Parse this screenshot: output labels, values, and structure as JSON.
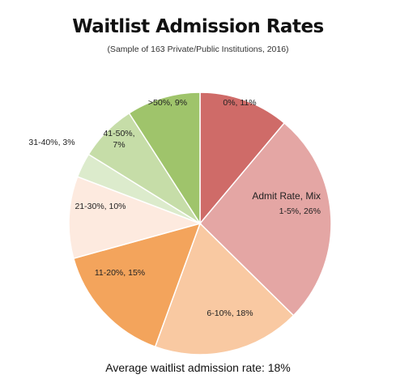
{
  "chart_data": {
    "type": "pie",
    "title": "Waitlist Admission Rates",
    "subtitle": "(Sample of 163 Private/Public Institutions, 2016)",
    "legend_title": "Admit Rate, Mix",
    "slices": [
      {
        "label": "0%, 11%",
        "category": "0%",
        "value": 11,
        "color": "#cf6b68"
      },
      {
        "label": "1-5%, 26%",
        "category": "1-5%",
        "value": 26,
        "color": "#e4a6a4"
      },
      {
        "label": "6-10%, 18%",
        "category": "6-10%",
        "value": 18,
        "color": "#f9c9a2"
      },
      {
        "label": "11-20%, 15%",
        "category": "11-20%",
        "value": 15,
        "color": "#f3a45c"
      },
      {
        "label": "21-30%, 10%",
        "category": "21-30%",
        "value": 10,
        "color": "#fdeadf"
      },
      {
        "label": "31-40%, 3%",
        "category": "31-40%",
        "value": 3,
        "color": "#dcebcc"
      },
      {
        "label": "41-50%, 7%",
        "category": "41-50%",
        "value": 7,
        "color": "#c6dda8"
      },
      {
        "label": ">50%, 9%",
        "category": ">50%",
        "value": 9,
        "color": "#9fc46b"
      }
    ],
    "footer": "Average waitlist admission rate: 18%"
  }
}
